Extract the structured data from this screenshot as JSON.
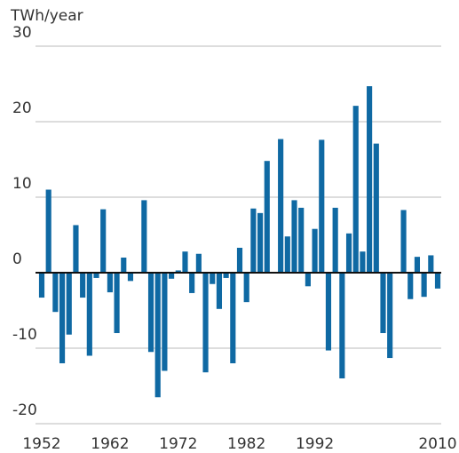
{
  "chart_data": {
    "type": "bar",
    "y_label": "TWh/year",
    "x": [
      1952,
      1953,
      1954,
      1955,
      1956,
      1957,
      1958,
      1959,
      1960,
      1961,
      1962,
      1963,
      1964,
      1965,
      1966,
      1967,
      1968,
      1969,
      1970,
      1971,
      1972,
      1973,
      1974,
      1975,
      1976,
      1977,
      1978,
      1979,
      1980,
      1981,
      1982,
      1983,
      1984,
      1985,
      1986,
      1987,
      1988,
      1989,
      1990,
      1991,
      1992,
      1993,
      1994,
      1995,
      1996,
      1997,
      1998,
      1999,
      2000,
      2001,
      2002,
      2003,
      2004,
      2005,
      2006,
      2007,
      2008,
      2009,
      2010
    ],
    "values": [
      -3.3,
      11,
      -5.2,
      -12,
      -8.2,
      6.3,
      -3.3,
      -11,
      -0.7,
      8.4,
      -2.6,
      -8,
      2,
      -1.1,
      0,
      9.6,
      -10.5,
      -16.5,
      -13,
      -0.8,
      0.3,
      2.8,
      -2.7,
      2.5,
      -13.2,
      -1.5,
      -4.8,
      -0.7,
      -12,
      3.3,
      -3.9,
      8.5,
      7.9,
      14.8,
      0,
      17.7,
      4.8,
      9.6,
      8.6,
      -1.8,
      5.8,
      17.6,
      -10.3,
      8.6,
      -14,
      5.2,
      22.1,
      2.8,
      24.7,
      17.1,
      -8,
      -11.3,
      0,
      8.3,
      -3.5,
      2.1,
      -3.2,
      2.3,
      -2.1
    ],
    "color": "#0f69a3",
    "xlim": [
      1952,
      2010
    ],
    "xticks": [
      1952,
      1962,
      1972,
      1982,
      1992,
      2010
    ],
    "ylim": [
      -20,
      30
    ],
    "yticks": [
      -20,
      -10,
      0,
      10,
      20,
      30
    ],
    "grid": true
  }
}
